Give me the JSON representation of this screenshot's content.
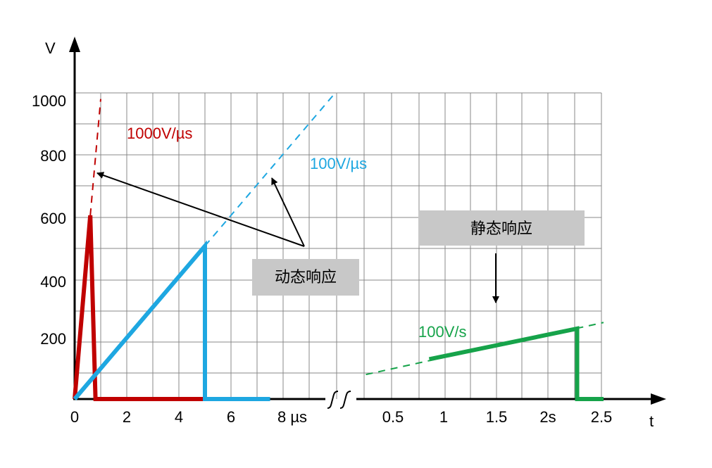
{
  "chart_data": {
    "type": "line",
    "ylabel": "V",
    "xlabel": "t",
    "y_ticks": [
      "200",
      "400",
      "600",
      "800",
      "1000"
    ],
    "left_x_ticks": [
      "0",
      "2",
      "4",
      "6",
      "8 µs"
    ],
    "right_x_ticks": [
      "0.5",
      "1",
      "1.5",
      "2s",
      "2.5"
    ],
    "ylim": [
      0,
      1000
    ],
    "grid": true,
    "series": [
      {
        "name": "1000V/µs",
        "color": "#c00000",
        "panel": "µs",
        "x": [
          0,
          0.6,
          0.8,
          5
        ],
        "y": [
          0,
          600,
          0,
          0
        ],
        "extension": {
          "x": [
            0.6,
            1.0
          ],
          "y": [
            600,
            980
          ]
        }
      },
      {
        "name": "100V/µs",
        "color": "#1ea7e1",
        "panel": "µs",
        "x": [
          0,
          5,
          5,
          7.5
        ],
        "y": [
          0,
          500,
          0,
          0
        ],
        "extension": {
          "x": [
            5,
            10
          ],
          "y": [
            500,
            1000
          ]
        }
      },
      {
        "name": "100V/s",
        "color": "#16a34a",
        "panel": "s",
        "x": [
          0.85,
          2.25,
          2.25,
          2.5
        ],
        "y": [
          130,
          230,
          0,
          0
        ],
        "extension": {
          "x": [
            0.25,
            2.5
          ],
          "y": [
            80,
            250
          ]
        }
      }
    ],
    "annotations": {
      "dynamic_label": "动态响应",
      "static_label": "静态响应"
    }
  }
}
